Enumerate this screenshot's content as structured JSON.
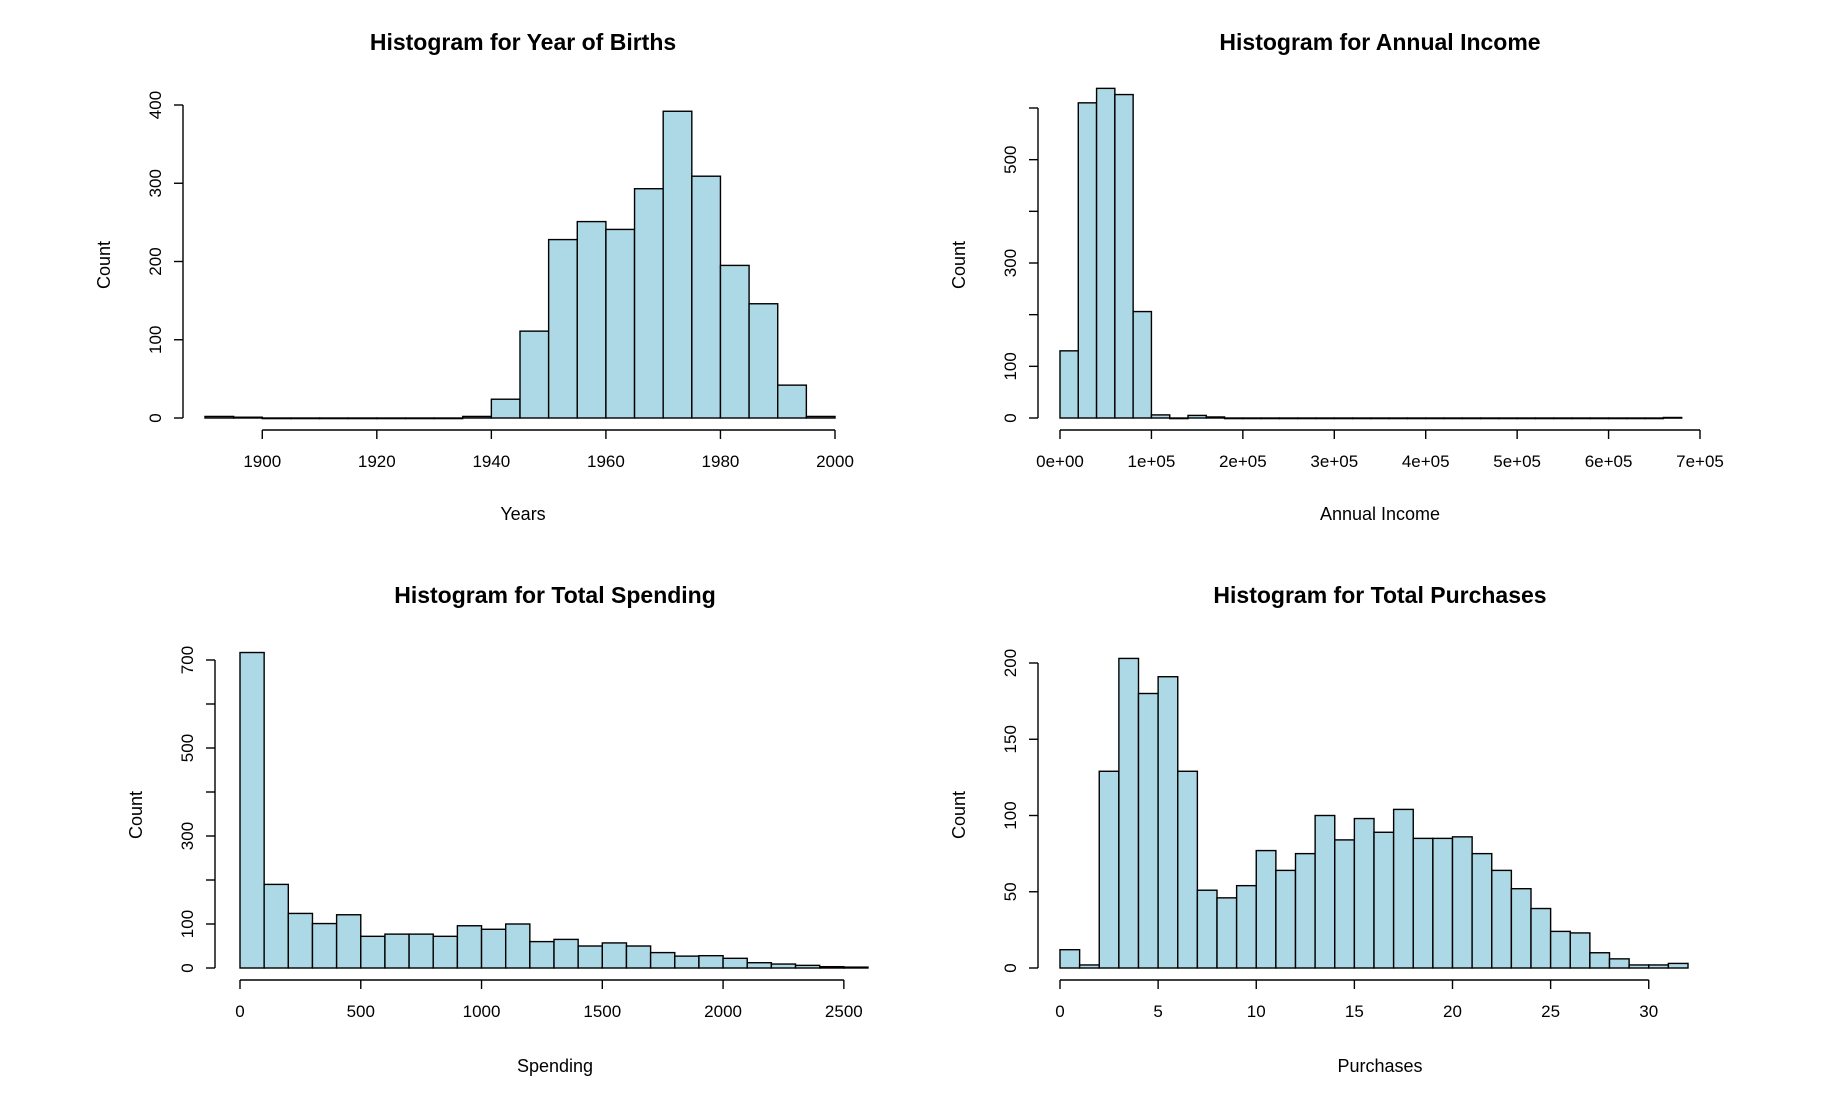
{
  "colors": {
    "bar_fill": "#add8e6",
    "bar_stroke": "#000000",
    "axis": "#000000"
  },
  "chart_data": [
    {
      "type": "bar",
      "title": "Histogram for Year of Births",
      "xlabel": "Years",
      "ylabel": "Count",
      "bin_start": 1890,
      "bin_width": 5,
      "values": [
        2,
        1,
        0,
        0,
        0,
        0,
        0,
        0,
        0,
        2,
        24,
        111,
        228,
        251,
        241,
        293,
        392,
        309,
        195,
        146,
        42,
        2
      ],
      "xlim": [
        1890,
        2000
      ],
      "ylim": [
        0,
        400
      ],
      "xticks": [
        1900,
        1920,
        1940,
        1960,
        1980,
        2000
      ],
      "xtick_labels": [
        "1900",
        "1920",
        "1940",
        "1960",
        "1980",
        "2000"
      ],
      "yticks": [
        0,
        100,
        200,
        300,
        400
      ],
      "ytick_labels": [
        "0",
        "100",
        "200",
        "300",
        "400"
      ],
      "yminor": []
    },
    {
      "type": "bar",
      "title": "Histogram for Annual Income",
      "xlabel": "Annual Income",
      "ylabel": "Count",
      "bin_start": 0,
      "bin_width": 20000,
      "values": [
        130,
        610,
        638,
        626,
        206,
        6,
        0,
        5,
        2,
        0,
        0,
        0,
        0,
        0,
        0,
        0,
        0,
        0,
        0,
        0,
        0,
        0,
        0,
        0,
        0,
        0,
        0,
        0,
        0,
        0,
        0,
        0,
        0,
        1
      ],
      "xlim": [
        0,
        700000
      ],
      "ylim": [
        0,
        600
      ],
      "xticks": [
        0,
        100000,
        200000,
        300000,
        400000,
        500000,
        600000,
        700000
      ],
      "xtick_labels": [
        "0e+00",
        "1e+05",
        "2e+05",
        "3e+05",
        "4e+05",
        "5e+05",
        "6e+05",
        "7e+05"
      ],
      "yticks": [
        0,
        100,
        300,
        500
      ],
      "ytick_labels": [
        "0",
        "100",
        "300",
        "500"
      ],
      "yminor": [
        200,
        400,
        600
      ]
    },
    {
      "type": "bar",
      "title": "Histogram for Total Spending",
      "xlabel": "Spending",
      "ylabel": "Count",
      "bin_start": 0,
      "bin_width": 100,
      "values": [
        717,
        190,
        124,
        101,
        121,
        72,
        77,
        77,
        72,
        96,
        88,
        100,
        60,
        65,
        50,
        57,
        50,
        35,
        27,
        28,
        22,
        12,
        9,
        6,
        3,
        2
      ],
      "xlim": [
        0,
        2600
      ],
      "ylim": [
        0,
        700
      ],
      "xticks": [
        0,
        500,
        1000,
        1500,
        2000,
        2500
      ],
      "xtick_labels": [
        "0",
        "500",
        "1000",
        "1500",
        "2000",
        "2500"
      ],
      "yticks": [
        0,
        100,
        300,
        500,
        700
      ],
      "ytick_labels": [
        "0",
        "100",
        "300",
        "500",
        "700"
      ],
      "yminor": [
        200,
        400,
        600
      ]
    },
    {
      "type": "bar",
      "title": "Histogram for Total Purchases",
      "xlabel": "Purchases",
      "ylabel": "Count",
      "bin_start": 0,
      "bin_width": 1,
      "values": [
        12,
        2,
        129,
        203,
        180,
        191,
        129,
        51,
        46,
        54,
        77,
        64,
        75,
        100,
        84,
        98,
        89,
        104,
        85,
        85,
        86,
        75,
        64,
        52,
        39,
        24,
        23,
        10,
        6,
        2,
        2,
        3
      ],
      "xlim": [
        0,
        32
      ],
      "ylim": [
        0,
        200
      ],
      "xticks": [
        0,
        5,
        10,
        15,
        20,
        25,
        30
      ],
      "xtick_labels": [
        "0",
        "5",
        "10",
        "15",
        "20",
        "25",
        "30"
      ],
      "yticks": [
        0,
        50,
        100,
        150,
        200
      ],
      "ytick_labels": [
        "0",
        "50",
        "100",
        "150",
        "200"
      ],
      "yminor": []
    }
  ]
}
